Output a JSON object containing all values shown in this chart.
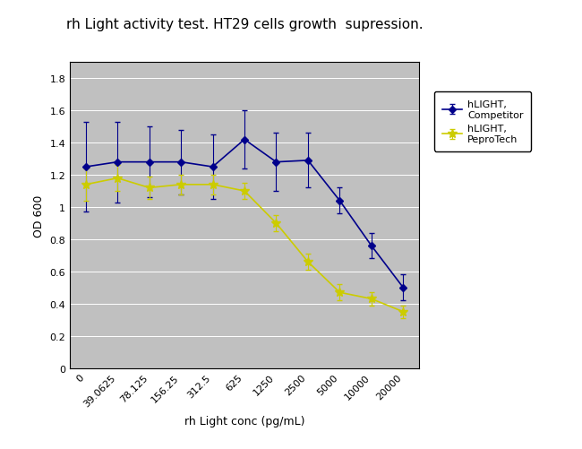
{
  "title": "rh Light activity test. HT29 cells growth  supression.",
  "xlabel": "rh Light conc (pg/mL)",
  "ylabel": "OD 600",
  "x_labels": [
    "0",
    "39.0625",
    "78.125",
    "156.25",
    "312.5",
    "625",
    "1250",
    "2500",
    "5000",
    "10000",
    "20000"
  ],
  "x_positions": [
    0,
    1,
    2,
    3,
    4,
    5,
    6,
    7,
    8,
    9,
    10
  ],
  "competitor_y": [
    1.25,
    1.28,
    1.28,
    1.28,
    1.25,
    1.42,
    1.28,
    1.29,
    1.04,
    0.76,
    0.5
  ],
  "competitor_err": [
    0.28,
    0.25,
    0.22,
    0.2,
    0.2,
    0.18,
    0.18,
    0.17,
    0.08,
    0.08,
    0.08
  ],
  "peprotech_y": [
    1.14,
    1.18,
    1.12,
    1.14,
    1.14,
    1.1,
    0.9,
    0.66,
    0.47,
    0.43,
    0.35
  ],
  "peprotech_err": [
    0.1,
    0.08,
    0.07,
    0.06,
    0.06,
    0.05,
    0.05,
    0.05,
    0.05,
    0.04,
    0.04
  ],
  "competitor_color": "#00008B",
  "peprotech_color": "#CCCC00",
  "ylim": [
    0,
    1.9
  ],
  "yticks": [
    0,
    0.2,
    0.4,
    0.6,
    0.8,
    1.0,
    1.2,
    1.4,
    1.6,
    1.8
  ],
  "plot_bg_color": "#C0C0C0",
  "fig_bg_color": "#FFFFFF",
  "legend_labels": [
    "hLIGHT,\nCompetitor",
    "hLIGHT,\nPeproTech"
  ],
  "title_fontsize": 11,
  "axis_label_fontsize": 9,
  "tick_fontsize": 8,
  "legend_fontsize": 8,
  "fig_width": 6.5,
  "fig_height": 5.02
}
